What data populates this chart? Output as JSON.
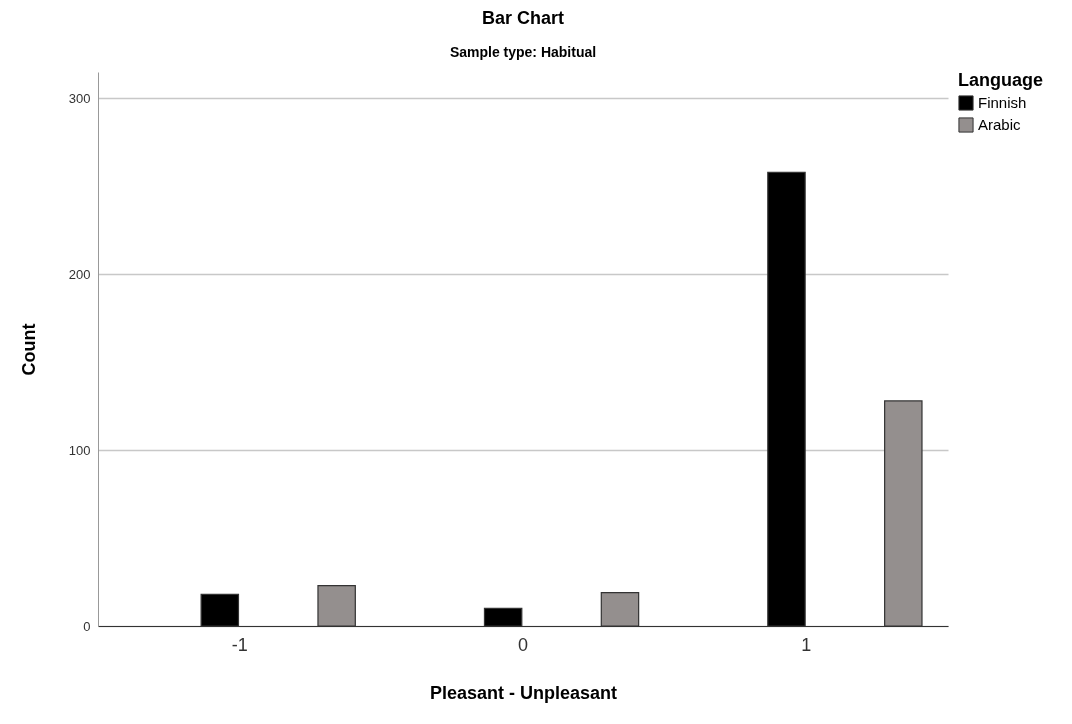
{
  "chart_data": {
    "type": "bar",
    "title": "Bar Chart",
    "subtitle": "Sample type: Habitual",
    "xlabel": "Pleasant - Unpleasant",
    "ylabel": "Count",
    "legend_title": "Language",
    "categories": [
      "-1",
      "0",
      "1"
    ],
    "series": [
      {
        "name": "Finnish",
        "color": "#000000",
        "values": [
          18,
          10,
          258
        ]
      },
      {
        "name": "Arabic",
        "color": "#948f8e",
        "values": [
          23,
          19,
          128
        ]
      }
    ],
    "ylim": [
      0,
      315
    ],
    "yticks": [
      0,
      100,
      200,
      300
    ],
    "grid": "y",
    "legend": "top right"
  }
}
